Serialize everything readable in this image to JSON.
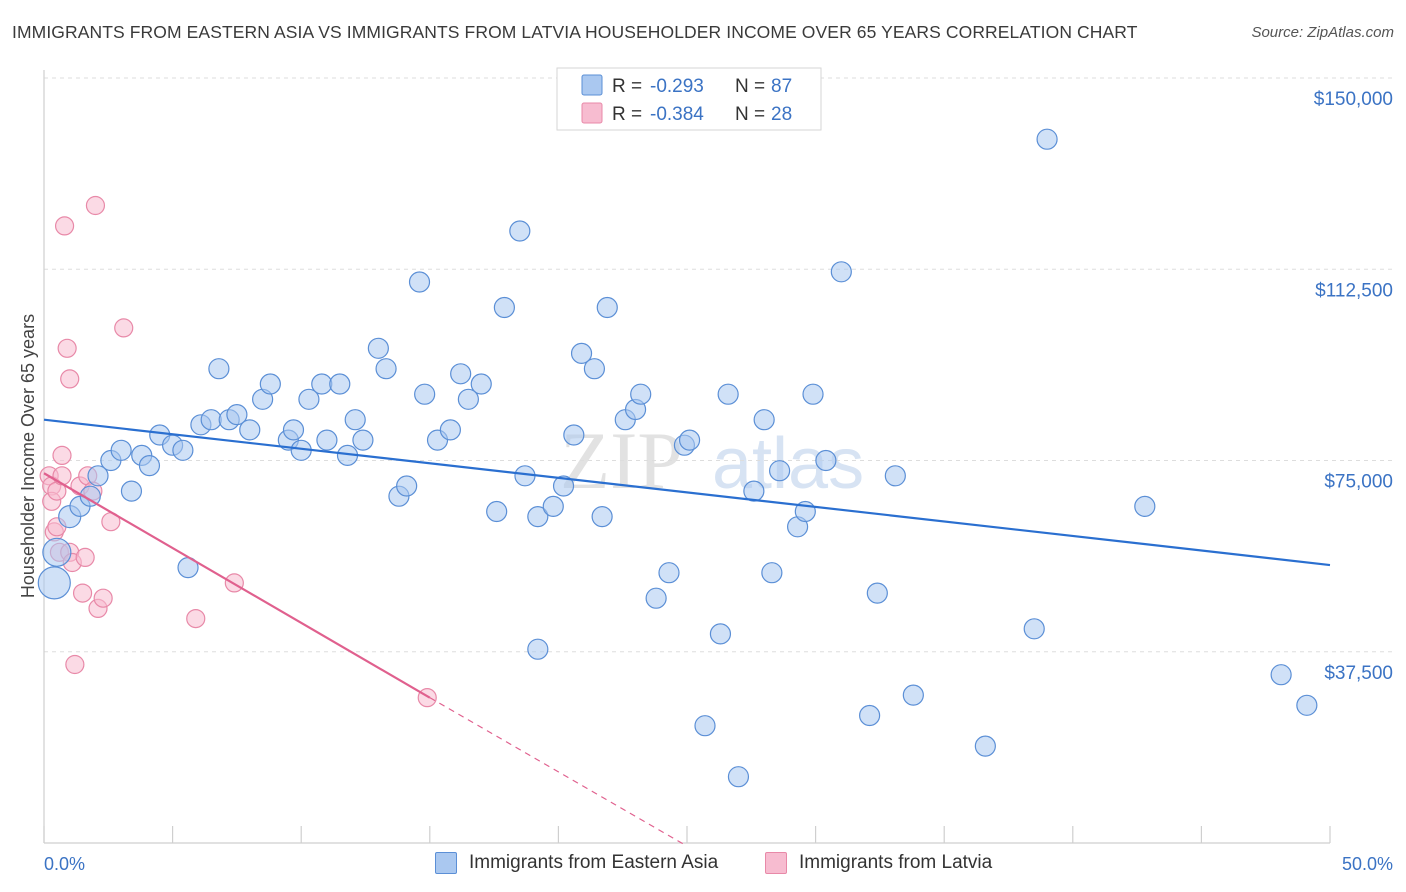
{
  "title": "IMMIGRANTS FROM EASTERN ASIA VS IMMIGRANTS FROM LATVIA HOUSEHOLDER INCOME OVER 65 YEARS CORRELATION CHART",
  "source": "Source: ZipAtlas.com",
  "watermark": {
    "zip": "ZIP",
    "atlas": "atlas"
  },
  "colors": {
    "blue_fill": "#aac8f0",
    "blue_stroke": "#5b8fd6",
    "blue_line": "#2a6fd0",
    "pink_fill": "#f7bcd0",
    "pink_stroke": "#e889a8",
    "pink_line": "#e0608e",
    "grid": "#dddddd",
    "tick_text": "#3b73c4"
  },
  "legend": {
    "rows": [
      {
        "r_label": "R =",
        "r_value": "-0.293",
        "n_label": "N =",
        "n_value": "87"
      },
      {
        "r_label": "R =",
        "r_value": "-0.384",
        "n_label": "N =",
        "n_value": "28"
      }
    ]
  },
  "bottom_legend": {
    "series1": "Immigrants from Eastern Asia",
    "series2": "Immigrants from Latvia"
  },
  "chart_data": {
    "type": "scatter",
    "title": "IMMIGRANTS FROM EASTERN ASIA VS IMMIGRANTS FROM LATVIA HOUSEHOLDER INCOME OVER 65 YEARS CORRELATION CHART",
    "xlabel": "",
    "ylabel": "Householder Income Over 65 years",
    "xlim": [
      0,
      50
    ],
    "ylim": [
      0,
      150000
    ],
    "x_tick_labels": {
      "left": "0.0%",
      "right": "50.0%"
    },
    "y_ticks": [
      {
        "value": 37500,
        "label": "$37,500"
      },
      {
        "value": 75000,
        "label": "$75,000"
      },
      {
        "value": 112500,
        "label": "$112,500"
      },
      {
        "value": 150000,
        "label": "$150,000"
      }
    ],
    "series": [
      {
        "name": "Immigrants from Eastern Asia",
        "color": "blue",
        "R": -0.293,
        "N": 87,
        "trend": {
          "x0": 0,
          "y0": 83000,
          "x1": 50,
          "y1": 54500
        },
        "points": [
          [
            0.4,
            51000,
            16
          ],
          [
            0.5,
            57000,
            14
          ],
          [
            1.0,
            64000,
            11
          ],
          [
            1.4,
            66000,
            10
          ],
          [
            1.8,
            68000,
            10
          ],
          [
            2.1,
            72000,
            10
          ],
          [
            2.6,
            75000,
            10
          ],
          [
            3.0,
            77000,
            10
          ],
          [
            3.4,
            69000,
            10
          ],
          [
            3.8,
            76000,
            10
          ],
          [
            4.1,
            74000,
            10
          ],
          [
            4.5,
            80000,
            10
          ],
          [
            5.0,
            78000,
            10
          ],
          [
            5.4,
            77000,
            10
          ],
          [
            5.6,
            54000,
            10
          ],
          [
            6.1,
            82000,
            10
          ],
          [
            6.5,
            83000,
            10
          ],
          [
            6.8,
            93000,
            10
          ],
          [
            7.2,
            83000,
            10
          ],
          [
            7.5,
            84000,
            10
          ],
          [
            8.0,
            81000,
            10
          ],
          [
            8.5,
            87000,
            10
          ],
          [
            8.8,
            90000,
            10
          ],
          [
            9.5,
            79000,
            10
          ],
          [
            9.7,
            81000,
            10
          ],
          [
            10.0,
            77000,
            10
          ],
          [
            10.3,
            87000,
            10
          ],
          [
            10.8,
            90000,
            10
          ],
          [
            11.0,
            79000,
            10
          ],
          [
            11.5,
            90000,
            10
          ],
          [
            11.8,
            76000,
            10
          ],
          [
            12.1,
            83000,
            10
          ],
          [
            12.4,
            79000,
            10
          ],
          [
            13.0,
            97000,
            10
          ],
          [
            13.3,
            93000,
            10
          ],
          [
            13.8,
            68000,
            10
          ],
          [
            14.1,
            70000,
            10
          ],
          [
            14.6,
            110000,
            10
          ],
          [
            14.8,
            88000,
            10
          ],
          [
            15.3,
            79000,
            10
          ],
          [
            15.8,
            81000,
            10
          ],
          [
            16.2,
            92000,
            10
          ],
          [
            16.5,
            87000,
            10
          ],
          [
            17.0,
            90000,
            10
          ],
          [
            17.6,
            65000,
            10
          ],
          [
            17.9,
            105000,
            10
          ],
          [
            18.5,
            120000,
            10
          ],
          [
            18.7,
            72000,
            10
          ],
          [
            19.2,
            64000,
            10
          ],
          [
            19.2,
            38000,
            10
          ],
          [
            19.8,
            66000,
            10
          ],
          [
            20.2,
            70000,
            10
          ],
          [
            20.6,
            80000,
            10
          ],
          [
            20.9,
            96000,
            10
          ],
          [
            21.4,
            93000,
            10
          ],
          [
            21.7,
            64000,
            10
          ],
          [
            21.9,
            105000,
            10
          ],
          [
            22.6,
            83000,
            10
          ],
          [
            23.0,
            85000,
            10
          ],
          [
            23.2,
            88000,
            10
          ],
          [
            23.8,
            48000,
            10
          ],
          [
            24.3,
            53000,
            10
          ],
          [
            24.9,
            78000,
            10
          ],
          [
            25.1,
            79000,
            10
          ],
          [
            25.7,
            23000,
            10
          ],
          [
            26.3,
            41000,
            10
          ],
          [
            26.6,
            88000,
            10
          ],
          [
            27.0,
            13000,
            10
          ],
          [
            27.6,
            69000,
            10
          ],
          [
            28.0,
            83000,
            10
          ],
          [
            28.3,
            53000,
            10
          ],
          [
            28.6,
            73000,
            10
          ],
          [
            29.3,
            62000,
            10
          ],
          [
            29.6,
            65000,
            10
          ],
          [
            29.9,
            88000,
            10
          ],
          [
            30.4,
            75000,
            10
          ],
          [
            31.0,
            112000,
            10
          ],
          [
            32.1,
            25000,
            10
          ],
          [
            32.4,
            49000,
            10
          ],
          [
            33.1,
            72000,
            10
          ],
          [
            33.8,
            29000,
            10
          ],
          [
            36.6,
            19000,
            10
          ],
          [
            38.5,
            42000,
            10
          ],
          [
            39.0,
            138000,
            10
          ],
          [
            42.8,
            66000,
            10
          ],
          [
            48.1,
            33000,
            10
          ],
          [
            49.1,
            27000,
            10
          ]
        ]
      },
      {
        "name": "Immigrants from Latvia",
        "color": "pink",
        "R": -0.384,
        "N": 28,
        "trend": {
          "x0": 0,
          "y0": 72500,
          "x1": 15,
          "y1": 28500
        },
        "trend_dashed": {
          "x0": 15,
          "y0": 28500,
          "x1": 25,
          "y1": -600
        },
        "points": [
          [
            0.2,
            72000,
            9
          ],
          [
            0.3,
            70000,
            9
          ],
          [
            0.3,
            67000,
            9
          ],
          [
            0.4,
            61000,
            9
          ],
          [
            0.5,
            69000,
            9
          ],
          [
            0.5,
            62000,
            9
          ],
          [
            0.6,
            57000,
            9
          ],
          [
            0.7,
            72000,
            9
          ],
          [
            0.7,
            76000,
            9
          ],
          [
            0.8,
            121000,
            9
          ],
          [
            0.9,
            97000,
            9
          ],
          [
            1.0,
            91000,
            9
          ],
          [
            1.0,
            57000,
            9
          ],
          [
            1.1,
            55000,
            9
          ],
          [
            1.2,
            35000,
            9
          ],
          [
            1.4,
            70000,
            9
          ],
          [
            1.5,
            49000,
            9
          ],
          [
            1.6,
            56000,
            9
          ],
          [
            1.7,
            72000,
            9
          ],
          [
            1.9,
            69000,
            9
          ],
          [
            2.0,
            125000,
            9
          ],
          [
            2.1,
            46000,
            9
          ],
          [
            2.3,
            48000,
            9
          ],
          [
            2.6,
            63000,
            9
          ],
          [
            3.1,
            101000,
            9
          ],
          [
            5.9,
            44000,
            9
          ],
          [
            7.4,
            51000,
            9
          ],
          [
            14.9,
            28500,
            9
          ]
        ]
      }
    ]
  }
}
